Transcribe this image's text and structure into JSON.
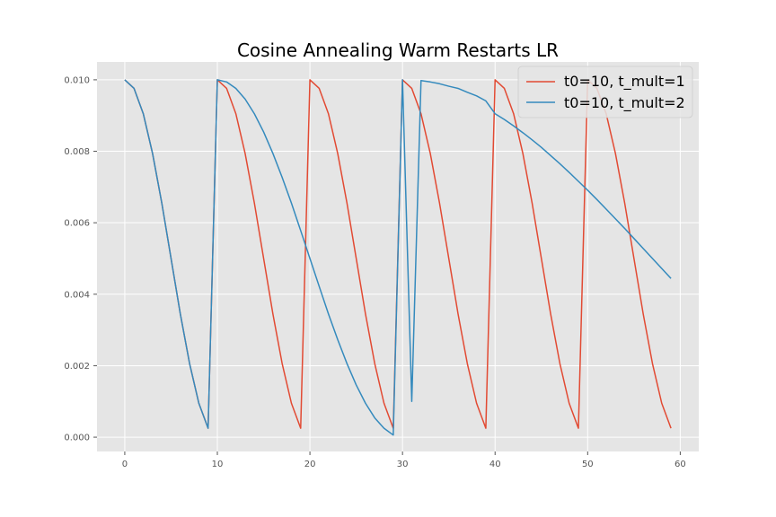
{
  "chart_data": {
    "type": "line",
    "title": "Cosine Annealing Warm Restarts LR",
    "xlabel": "",
    "ylabel": "",
    "xlim": [
      -3,
      62
    ],
    "ylim": [
      -0.0004,
      0.0105
    ],
    "xticks": [
      0,
      10,
      20,
      30,
      40,
      50,
      60
    ],
    "yticks": [
      0.0,
      0.002,
      0.004,
      0.006,
      0.008,
      0.01
    ],
    "xtick_labels": [
      "0",
      "10",
      "20",
      "30",
      "40",
      "50",
      "60"
    ],
    "ytick_labels": [
      "0.000",
      "0.002",
      "0.004",
      "0.006",
      "0.008",
      "0.010"
    ],
    "grid": true,
    "legend_position": "top-right",
    "series": [
      {
        "name": "t0=10, t_mult=1",
        "color": "#e24a33",
        "x": [
          0,
          1,
          2,
          3,
          4,
          5,
          6,
          7,
          8,
          9,
          10,
          11,
          12,
          13,
          14,
          15,
          16,
          17,
          18,
          19,
          20,
          21,
          22,
          23,
          24,
          25,
          26,
          27,
          28,
          29,
          30,
          31,
          32,
          33,
          34,
          35,
          36,
          37,
          38,
          39,
          40,
          41,
          42,
          43,
          44,
          45,
          46,
          47,
          48,
          49,
          50,
          51,
          52,
          53,
          54,
          55,
          56,
          57,
          58,
          59
        ],
        "y": [
          0.01,
          0.00976,
          0.00905,
          0.00794,
          0.00655,
          0.005,
          0.00345,
          0.00206,
          0.00095,
          0.00025,
          0.01,
          0.00976,
          0.00905,
          0.00794,
          0.00655,
          0.005,
          0.00345,
          0.00206,
          0.00095,
          0.00025,
          0.01,
          0.00976,
          0.00905,
          0.00794,
          0.00655,
          0.005,
          0.00345,
          0.00206,
          0.00095,
          0.00025,
          0.01,
          0.00976,
          0.00905,
          0.00794,
          0.00655,
          0.005,
          0.00345,
          0.00206,
          0.00095,
          0.00025,
          0.01,
          0.00976,
          0.00905,
          0.00794,
          0.00655,
          0.005,
          0.00345,
          0.00206,
          0.00095,
          0.00025,
          0.01,
          0.00976,
          0.00905,
          0.00794,
          0.00655,
          0.005,
          0.00345,
          0.00206,
          0.00095,
          0.00025
        ]
      },
      {
        "name": "t0=10, t_mult=2",
        "color": "#348abd",
        "x": [
          0,
          1,
          2,
          3,
          4,
          5,
          6,
          7,
          8,
          9,
          10,
          11,
          12,
          13,
          14,
          15,
          16,
          17,
          18,
          19,
          20,
          21,
          22,
          23,
          24,
          25,
          26,
          27,
          28,
          29,
          30,
          31,
          32,
          33,
          34,
          35,
          36,
          37,
          38,
          39,
          40,
          41,
          42,
          43,
          44,
          45,
          46,
          47,
          48,
          49,
          50,
          51,
          52,
          53,
          54,
          55,
          56,
          57,
          58,
          59
        ],
        "y": [
          0.01,
          0.00976,
          0.00905,
          0.00794,
          0.00655,
          0.005,
          0.00345,
          0.00206,
          0.00095,
          0.00025,
          0.01,
          0.00994,
          0.00976,
          0.00946,
          0.00905,
          0.00854,
          0.00794,
          0.00727,
          0.00655,
          0.00578,
          0.005,
          0.00422,
          0.00345,
          0.00273,
          0.00206,
          0.00146,
          0.00095,
          0.00054,
          0.00025,
          6e-05,
          0.01,
          0.001,
          0.00998,
          0.00994,
          0.00989,
          0.00982,
          0.00976,
          0.00965,
          0.00955,
          0.00941,
          0.00905,
          0.00889,
          0.00871,
          0.00852,
          0.00832,
          0.00811,
          0.00788,
          0.00765,
          0.00741,
          0.00716,
          0.00691,
          0.00665,
          0.00638,
          0.00611,
          0.00584,
          0.00556,
          0.00528,
          0.005,
          0.00472,
          0.00444
        ]
      }
    ]
  }
}
